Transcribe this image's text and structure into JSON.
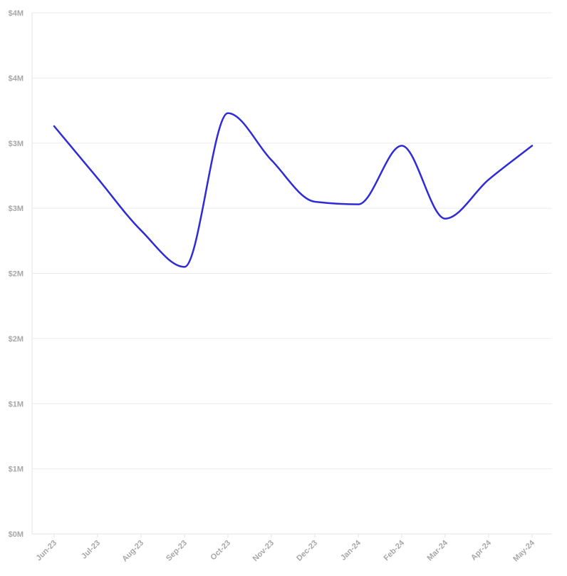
{
  "chart_data": {
    "type": "line",
    "categories": [
      "Jun-23",
      "Jul-23",
      "Aug-23",
      "Sep-23",
      "Oct-23",
      "Nov-23",
      "Dec-23",
      "Jan-24",
      "Feb-24",
      "Mar-24",
      "Apr-24",
      "May-24"
    ],
    "series": [
      {
        "values": [
          3.13,
          2.73,
          2.33,
          2.05,
          3.23,
          2.87,
          2.55,
          2.53,
          2.98,
          2.42,
          2.72,
          2.98
        ]
      }
    ],
    "y_ticks": [
      0,
      0.5,
      1.0,
      1.5,
      2.0,
      2.5,
      3.0,
      3.5,
      4.0
    ],
    "y_tick_labels": [
      "$0M",
      "$1M",
      "$1M",
      "$2M",
      "$2M",
      "$3M",
      "$3M",
      "$4M",
      "$4M"
    ],
    "ylim": [
      0,
      4.0
    ],
    "title": "",
    "xlabel": "",
    "ylabel": "",
    "grid": true,
    "line_color": "#2f2bd8",
    "grid_color": "#ebebeb",
    "axis_color": "#e3e3e3",
    "label_color": "#a7a7a7"
  }
}
